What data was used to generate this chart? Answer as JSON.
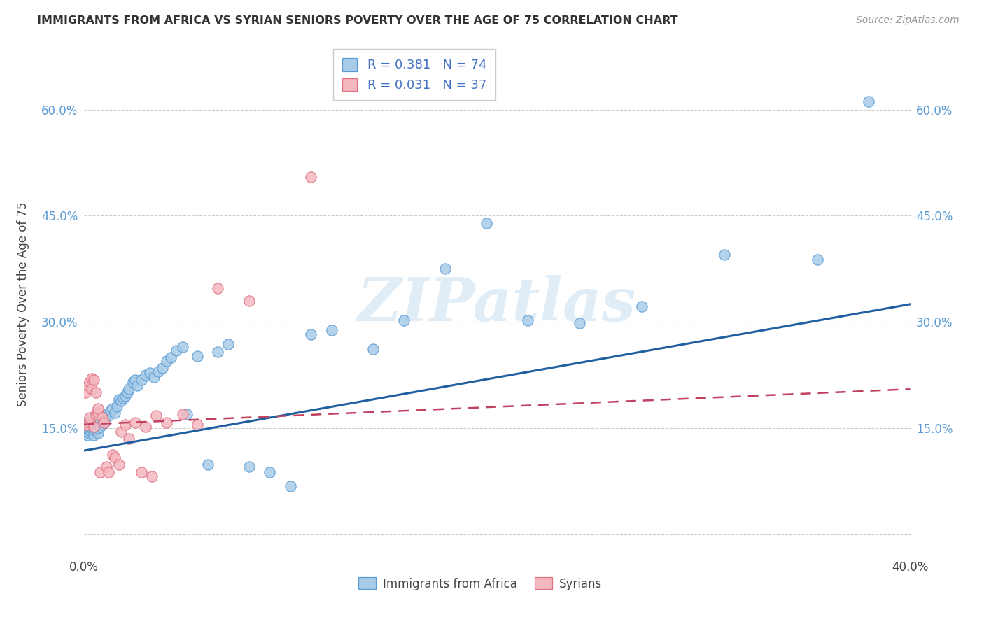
{
  "title": "IMMIGRANTS FROM AFRICA VS SYRIAN SENIORS POVERTY OVER THE AGE OF 75 CORRELATION CHART",
  "source": "Source: ZipAtlas.com",
  "ylabel": "Seniors Poverty Over the Age of 75",
  "xlim": [
    0.0,
    0.4
  ],
  "ylim": [
    -0.03,
    0.68
  ],
  "xtick_vals": [
    0.0,
    0.05,
    0.1,
    0.15,
    0.2,
    0.25,
    0.3,
    0.35,
    0.4
  ],
  "xtick_labels": [
    "0.0%",
    "",
    "",
    "",
    "",
    "",
    "",
    "",
    "40.0%"
  ],
  "ytick_vals": [
    0.0,
    0.15,
    0.3,
    0.45,
    0.6
  ],
  "ytick_labels": [
    "",
    "15.0%",
    "30.0%",
    "45.0%",
    "60.0%"
  ],
  "africa_color": "#a8cce8",
  "africa_edge_color": "#5b9bd5",
  "syria_color": "#f4b8c0",
  "syria_edge_color": "#e07080",
  "africa_R": 0.381,
  "africa_N": 74,
  "syria_R": 0.031,
  "syria_N": 37,
  "watermark": "ZIPatlas",
  "africa_line_color": "#2060a0",
  "syria_line_color": "#c04060",
  "grid_color": "#cccccc",
  "background_color": "#ffffff",
  "legend_text_color": "#4472c4",
  "africa_x": [
    0.001,
    0.001,
    0.001,
    0.001,
    0.002,
    0.002,
    0.002,
    0.002,
    0.002,
    0.003,
    0.003,
    0.003,
    0.003,
    0.004,
    0.004,
    0.004,
    0.005,
    0.005,
    0.005,
    0.005,
    0.006,
    0.006,
    0.007,
    0.007,
    0.008,
    0.008,
    0.009,
    0.01,
    0.01,
    0.011,
    0.012,
    0.013,
    0.014,
    0.015,
    0.016,
    0.017,
    0.018,
    0.019,
    0.02,
    0.021,
    0.022,
    0.024,
    0.025,
    0.026,
    0.028,
    0.03,
    0.032,
    0.034,
    0.036,
    0.038,
    0.04,
    0.042,
    0.045,
    0.048,
    0.05,
    0.055,
    0.06,
    0.065,
    0.07,
    0.08,
    0.09,
    0.1,
    0.11,
    0.12,
    0.14,
    0.155,
    0.175,
    0.195,
    0.215,
    0.24,
    0.27,
    0.31,
    0.355,
    0.38
  ],
  "africa_y": [
    0.145,
    0.148,
    0.15,
    0.152,
    0.14,
    0.145,
    0.15,
    0.155,
    0.158,
    0.143,
    0.148,
    0.152,
    0.158,
    0.145,
    0.15,
    0.158,
    0.14,
    0.148,
    0.155,
    0.16,
    0.148,
    0.155,
    0.143,
    0.15,
    0.152,
    0.16,
    0.155,
    0.158,
    0.165,
    0.17,
    0.168,
    0.175,
    0.178,
    0.172,
    0.18,
    0.19,
    0.188,
    0.192,
    0.195,
    0.2,
    0.205,
    0.215,
    0.218,
    0.21,
    0.218,
    0.225,
    0.228,
    0.222,
    0.23,
    0.235,
    0.245,
    0.25,
    0.26,
    0.265,
    0.17,
    0.252,
    0.098,
    0.258,
    0.268,
    0.095,
    0.088,
    0.068,
    0.282,
    0.288,
    0.262,
    0.302,
    0.375,
    0.44,
    0.302,
    0.298,
    0.322,
    0.395,
    0.388,
    0.612
  ],
  "syria_x": [
    0.001,
    0.001,
    0.002,
    0.002,
    0.003,
    0.003,
    0.003,
    0.004,
    0.004,
    0.005,
    0.005,
    0.006,
    0.006,
    0.007,
    0.007,
    0.008,
    0.009,
    0.01,
    0.011,
    0.012,
    0.014,
    0.015,
    0.017,
    0.018,
    0.02,
    0.022,
    0.025,
    0.028,
    0.03,
    0.033,
    0.035,
    0.04,
    0.048,
    0.055,
    0.065,
    0.08,
    0.11
  ],
  "syria_y": [
    0.155,
    0.2,
    0.155,
    0.21,
    0.158,
    0.165,
    0.215,
    0.205,
    0.22,
    0.152,
    0.218,
    0.17,
    0.2,
    0.172,
    0.178,
    0.088,
    0.165,
    0.158,
    0.095,
    0.088,
    0.112,
    0.108,
    0.098,
    0.145,
    0.155,
    0.135,
    0.158,
    0.088,
    0.152,
    0.082,
    0.168,
    0.158,
    0.17,
    0.155,
    0.348,
    0.33,
    0.505
  ]
}
